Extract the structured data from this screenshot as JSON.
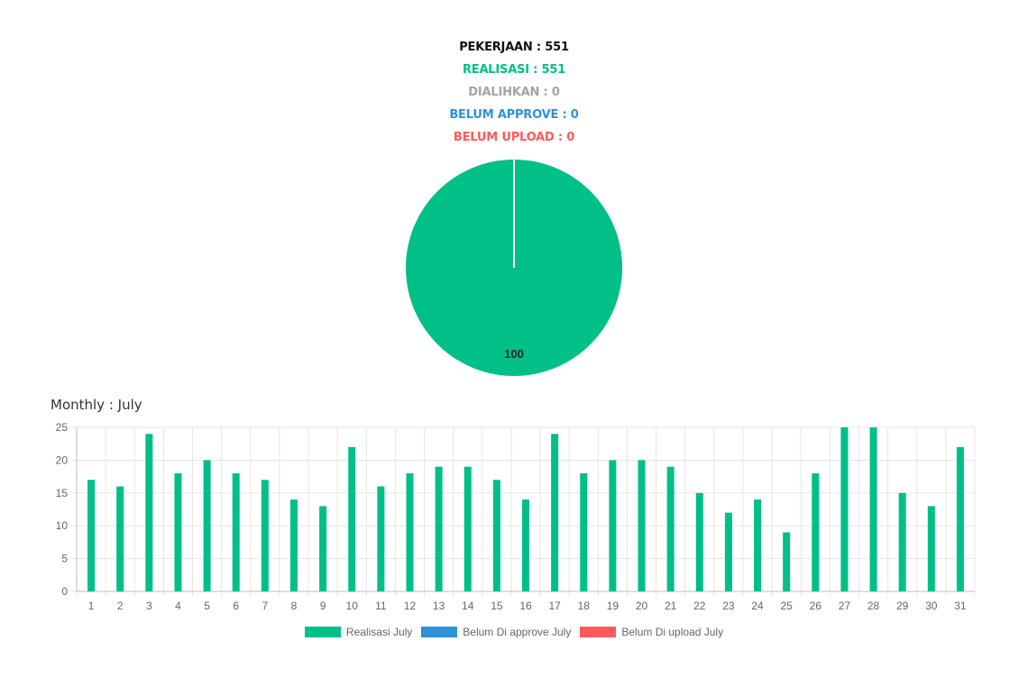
{
  "summary": {
    "pekerjaan": "PEKERJAAN : 551",
    "realisasi": "REALISASI : 551",
    "dialihkan": "DIALIHKAN : 0",
    "belum_approve": "BELUM APPROVE : 0",
    "belum_upload": "BELUM UPLOAD : 0"
  },
  "colors": {
    "black": "#111111",
    "green": "#00bf87",
    "gray": "#a3a3a3",
    "blue": "#2e93d6",
    "red": "#ff5a5a",
    "grid": "#e6e6e6",
    "axis_text": "#666666"
  },
  "monthly_title": "Monthly : July",
  "chart_data": [
    {
      "type": "pie",
      "slices": [
        {
          "label": "Realisasi",
          "value": 100,
          "color": "#00bf87"
        }
      ],
      "data_labels": [
        "100"
      ]
    },
    {
      "type": "bar",
      "title": "Monthly : July",
      "categories": [
        "1",
        "2",
        "3",
        "4",
        "5",
        "6",
        "7",
        "8",
        "9",
        "10",
        "11",
        "12",
        "13",
        "14",
        "15",
        "16",
        "17",
        "18",
        "19",
        "20",
        "21",
        "22",
        "23",
        "24",
        "25",
        "26",
        "27",
        "28",
        "29",
        "30",
        "31"
      ],
      "series": [
        {
          "name": "Realisasi July",
          "color": "#00bf87",
          "values": [
            17,
            16,
            24,
            18,
            20,
            18,
            17,
            14,
            13,
            22,
            16,
            18,
            19,
            19,
            17,
            14,
            24,
            18,
            20,
            20,
            19,
            15,
            12,
            14,
            9,
            18,
            25,
            25,
            15,
            13,
            22
          ]
        },
        {
          "name": "Belum Di approve July",
          "color": "#2e93d6",
          "values": [
            0,
            0,
            0,
            0,
            0,
            0,
            0,
            0,
            0,
            0,
            0,
            0,
            0,
            0,
            0,
            0,
            0,
            0,
            0,
            0,
            0,
            0,
            0,
            0,
            0,
            0,
            0,
            0,
            0,
            0,
            0
          ]
        },
        {
          "name": "Belum Di upload July",
          "color": "#ff5a5a",
          "values": [
            0,
            0,
            0,
            0,
            0,
            0,
            0,
            0,
            0,
            0,
            0,
            0,
            0,
            0,
            0,
            0,
            0,
            0,
            0,
            0,
            0,
            0,
            0,
            0,
            0,
            0,
            0,
            0,
            0,
            0,
            0
          ]
        }
      ],
      "yticks": [
        "0",
        "5",
        "10",
        "15",
        "20",
        "25"
      ],
      "ylim": [
        0,
        25
      ],
      "grid": true,
      "legend_position": "bottom"
    }
  ]
}
